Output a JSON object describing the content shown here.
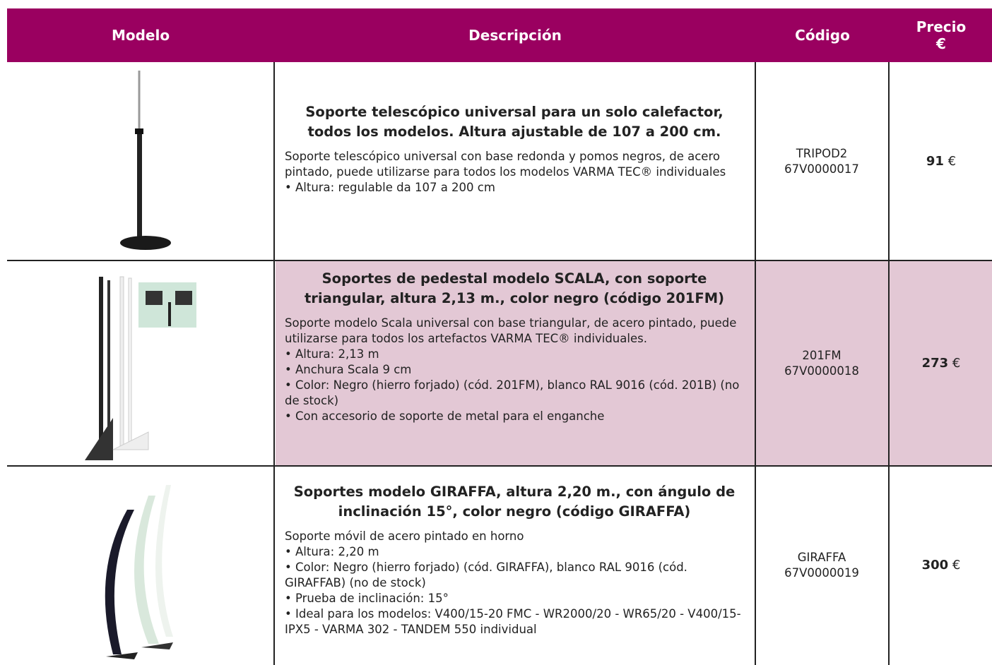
{
  "header": {
    "model": "Modelo",
    "description": "Descripción",
    "code": "Código",
    "price": "Precio",
    "currency": "€"
  },
  "rows": [
    {
      "title": "Soporte telescópico universal para un solo calefactor, todos los modelos. Altura ajustable de 107 a 200 cm.",
      "body": [
        "Soporte telescópico universal con base redonda y pomos negros, de acero pintado, puede utilizarse para todos los modelos VARMA TEC® individuales",
        "• Altura: regulable da 107 a 200 cm"
      ],
      "code": [
        "TRIPOD2",
        "67V0000017"
      ],
      "price": "91",
      "currency": "€"
    },
    {
      "title": "Soportes de pedestal modelo SCALA, con soporte triangular, altura 2,13 m., color negro (código 201FM)",
      "body": [
        "Soporte modelo Scala universal con base triangular, de acero pintado, puede utilizarse para todos los artefactos VARMA TEC® individuales.",
        "• Altura: 2,13 m",
        "• Anchura Scala 9 cm",
        "• Color: Negro (hierro forjado) (cód. 201FM), blanco RAL 9016 (cód. 201B) (no de stock)",
        "• Con accesorio de soporte de metal para el enganche"
      ],
      "code": [
        "201FM",
        "67V0000018"
      ],
      "price": "273",
      "currency": "€"
    },
    {
      "title": "Soportes modelo GIRAFFA, altura 2,20 m., con ángulo de inclinación 15°, color negro (código GIRAFFA)",
      "body": [
        "Soporte móvil de acero pintado en horno",
        "• Altura: 2,20 m",
        "• Color: Negro (hierro forjado) (cód. GIRAFFA), blanco RAL 9016 (cód. GIRAFFAB) (no de stock)",
        "• Prueba de inclinación: 15°",
        "• Ideal para los modelos: V400/15-20 FMC - WR2000/20 - WR65/20 - V400/15-IPX5 - VARMA 302 - TANDEM 550 individual"
      ],
      "code": [
        "GIRAFFA",
        "67V0000019"
      ],
      "price": "300",
      "currency": "€"
    }
  ]
}
